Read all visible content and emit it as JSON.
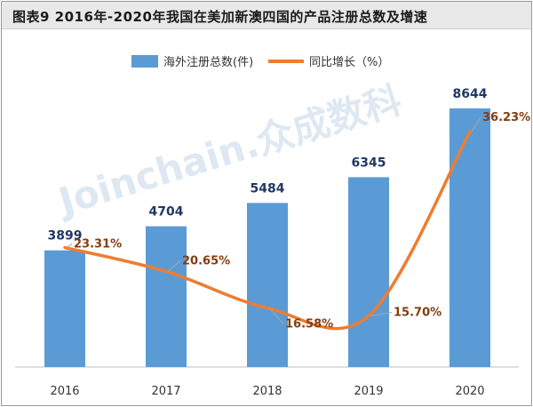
{
  "title": "图表9  2016年-2020年我国在美加新澳四国的产品注册总数及增速",
  "watermark": "Joinchain.众成数科",
  "chart_data": {
    "type": "bar",
    "categories": [
      "2016",
      "2017",
      "2018",
      "2019",
      "2020"
    ],
    "series": [
      {
        "name": "海外注册总数(件)",
        "kind": "bar",
        "color": "#5b9bd5",
        "values": [
          3899,
          4704,
          5484,
          6345,
          8644
        ],
        "labels": [
          "3899",
          "4704",
          "5484",
          "6345",
          "8644"
        ]
      },
      {
        "name": "同比增长（%）",
        "kind": "line",
        "color": "#ed7d31",
        "values": [
          23.31,
          20.65,
          16.58,
          15.7,
          36.23
        ],
        "labels": [
          "23.31%",
          "20.65%",
          "16.58%",
          "15.70%",
          "36.23%"
        ]
      }
    ],
    "ylim": [
      0,
      9000
    ],
    "y2lim": [
      10,
      40
    ],
    "legend": "top-center",
    "grid": false
  }
}
